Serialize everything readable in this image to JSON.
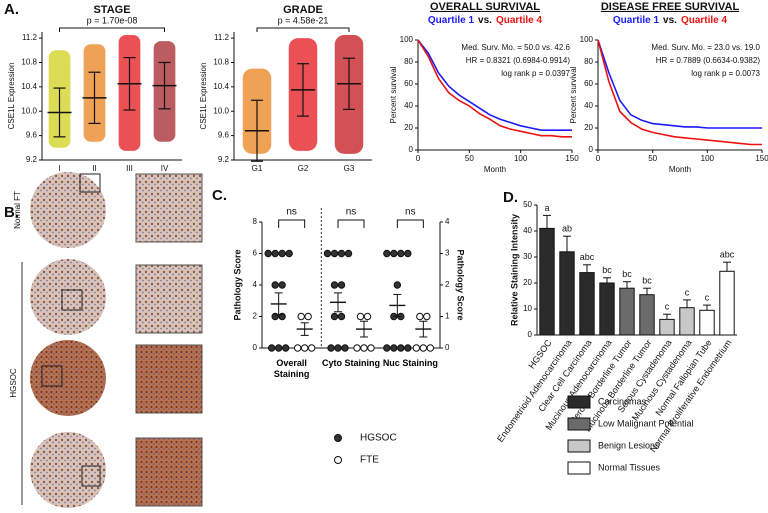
{
  "panel_labels": [
    "A.",
    "B.",
    "C.",
    "D."
  ],
  "panel_b": {
    "labels": [
      "Normal FT",
      "HGSOC"
    ]
  },
  "chart_data": [
    {
      "type": "strip",
      "title": "STAGE",
      "ylabel": "CSE1L Expression",
      "categories": [
        "I",
        "II",
        "III",
        "IV"
      ],
      "colors": [
        "#d2d21c",
        "#e9821e",
        "#e4161c",
        "#a4262c"
      ],
      "values": [
        9.98,
        10.22,
        10.45,
        10.42
      ],
      "errors": [
        0.4,
        0.42,
        0.43,
        0.38
      ],
      "ranges": [
        [
          9.4,
          11.0
        ],
        [
          9.5,
          11.1
        ],
        [
          9.35,
          11.25
        ],
        [
          9.5,
          11.15
        ]
      ],
      "ylim": [
        9.2,
        11.3
      ],
      "yticks": [
        9.2,
        9.6,
        {
          "value": 10,
          "label": "10.0"
        },
        10.4,
        10.8,
        11.2
      ],
      "annotation": "p = 1.70e-08"
    },
    {
      "type": "strip",
      "title": "GRADE",
      "ylabel": "CSE1L Expression",
      "categories": [
        "G1",
        "G2",
        "G3"
      ],
      "colors": [
        "#e9821e",
        "#e4161c",
        "#c4161c"
      ],
      "values": [
        9.68,
        10.35,
        10.45
      ],
      "errors": [
        0.5,
        0.43,
        0.42
      ],
      "ranges": [
        [
          9.3,
          10.7
        ],
        [
          9.35,
          11.2
        ],
        [
          9.3,
          11.25
        ]
      ],
      "ylim": [
        9.2,
        11.3
      ],
      "yticks": [
        9.2,
        9.6,
        {
          "value": 10,
          "label": "10.0"
        },
        10.4,
        10.8,
        11.2
      ],
      "annotation": "p = 4.58e-21"
    },
    {
      "type": "line",
      "title": "OVERALL SURVIVAL",
      "legend_separator": "vs.",
      "xlabel": "Month",
      "ylabel": "Percent survival",
      "x": [
        0,
        10,
        20,
        30,
        40,
        50,
        60,
        70,
        80,
        90,
        100,
        110,
        120,
        130,
        140,
        150
      ],
      "series": [
        {
          "name": "Quartile 1",
          "color": "#1a1aff",
          "values": [
            100,
            88,
            70,
            58,
            50,
            44,
            38,
            32,
            28,
            25,
            22,
            20,
            18,
            18,
            18,
            18
          ]
        },
        {
          "name": "Quartile 4",
          "color": "#ee1111",
          "values": [
            100,
            85,
            65,
            52,
            45,
            40,
            33,
            28,
            22,
            19,
            17,
            15,
            13,
            13,
            12,
            12
          ]
        }
      ],
      "xlim": [
        0,
        150
      ],
      "xticks": [
        0,
        50,
        100,
        150
      ],
      "ylim": [
        0,
        100
      ],
      "yticks": [
        0,
        20,
        40,
        60,
        80,
        100
      ],
      "annotations": [
        "Med. Surv. Mo. = 50.0 vs. 42.6",
        "HR = 0.8321 (0.6984-0.9914)",
        "log rank p = 0.0397"
      ]
    },
    {
      "type": "line",
      "title": "DISEASE FREE SURVIVAL",
      "legend_separator": "vs.",
      "xlabel": "Month",
      "ylabel": "Percent survival",
      "x": [
        0,
        10,
        20,
        30,
        40,
        50,
        60,
        70,
        80,
        90,
        100,
        110,
        120,
        130,
        140,
        150
      ],
      "series": [
        {
          "name": "Quartile 1",
          "color": "#1a1aff",
          "values": [
            100,
            70,
            45,
            32,
            27,
            24,
            23,
            22,
            21,
            21,
            20,
            20,
            20,
            20,
            20,
            20
          ]
        },
        {
          "name": "Quartile 4",
          "color": "#ee1111",
          "values": [
            100,
            62,
            35,
            25,
            19,
            16,
            14,
            12,
            11,
            10,
            9,
            8,
            7,
            6,
            5,
            5
          ]
        }
      ],
      "xlim": [
        0,
        150
      ],
      "xticks": [
        0,
        50,
        100,
        150
      ],
      "ylim": [
        0,
        100
      ],
      "yticks": [
        0,
        20,
        40,
        60,
        80,
        100
      ],
      "annotations": [
        "Med. Surv. Mo. = 23.0 vs. 19.0",
        "HR = 0.7889 (0.6634-0.9382)",
        "log rank p = 0.0073"
      ]
    },
    {
      "type": "dot",
      "ylabel": "Pathology Score",
      "y2label": "Pathology Score",
      "categories": [
        "Overall Staining",
        "Cyto Staining",
        "Nuc Staining"
      ],
      "ylim": [
        0,
        8
      ],
      "yticks": [
        0,
        2,
        4,
        6,
        8
      ],
      "y2lim": [
        0,
        4
      ],
      "y2ticks": [
        0,
        1,
        2,
        3,
        4
      ],
      "annotations": [
        "ns",
        "ns",
        "ns"
      ],
      "series": [
        {
          "name": "HGSOC",
          "color": "#333333",
          "points": [
            [
              6,
              6,
              6,
              6,
              4,
              4,
              2,
              2,
              0,
              0,
              0
            ],
            [
              6,
              6,
              6,
              6,
              4,
              4,
              2,
              2,
              0,
              0,
              0
            ],
            [
              6,
              6,
              6,
              6,
              4,
              2,
              2,
              0,
              0,
              0,
              0
            ]
          ],
          "values": [
            2.8,
            2.9,
            2.7
          ],
          "errors": [
            0.7,
            0.6,
            0.7
          ]
        },
        {
          "name": "FTE",
          "color": "#ffffff",
          "points": [
            [
              2,
              2,
              0,
              0,
              0
            ],
            [
              2,
              0,
              0,
              0,
              2
            ],
            [
              2,
              2,
              0,
              0,
              0
            ]
          ],
          "values": [
            1.2,
            1.2,
            1.2
          ],
          "errors": [
            0.4,
            0.5,
            0.5
          ]
        }
      ]
    },
    {
      "type": "bar",
      "ylabel": "Relative Staining Intensity",
      "categories": [
        "HGSOC",
        "Endometrioid Adenocarcinoma",
        "Clear Cell Carcinoma",
        "Mucinous Adenocarcinoma",
        "Serous Borderline Tumor",
        "Mucinous Borderline Tumor",
        "Serous Cystadenoma",
        "Mucinous Cystadenoma",
        "Normal Fallopian Tube",
        "Normal Proliferative Endometrium"
      ],
      "values": [
        41,
        32,
        24,
        20,
        18,
        15.5,
        6,
        10.5,
        9.5,
        24.5
      ],
      "errors": [
        5,
        6,
        3,
        2,
        2.5,
        2.5,
        2,
        3,
        2,
        3.5
      ],
      "colors": [
        "#2b2b2b",
        "#2b2b2b",
        "#2b2b2b",
        "#2b2b2b",
        "#6b6b6b",
        "#6b6b6b",
        "#c8c8c8",
        "#c8c8c8",
        "#ffffff",
        "#ffffff"
      ],
      "annotations": [
        "a",
        "ab",
        "abc",
        "bc",
        "bc",
        "bc",
        "c",
        "c",
        "c",
        "abc"
      ],
      "ylim": [
        0,
        50
      ],
      "yticks": [
        0,
        10,
        20,
        30,
        40,
        50
      ],
      "legend": [
        {
          "name": "Carcinomas",
          "color": "#2b2b2b"
        },
        {
          "name": "Low Malignant Potential",
          "color": "#6b6b6b"
        },
        {
          "name": "Benign Lesions",
          "color": "#c8c8c8"
        },
        {
          "name": "Normal Tissues",
          "color": "#ffffff"
        }
      ]
    }
  ]
}
